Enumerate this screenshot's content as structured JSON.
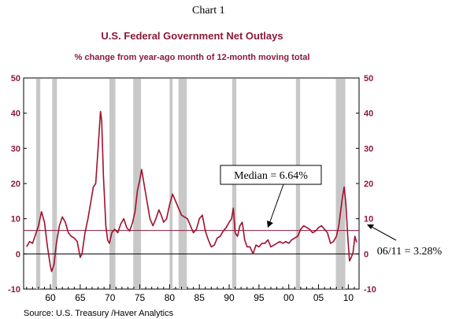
{
  "header": {
    "chart_label": "Chart 1",
    "title": "U.S. Federal Government Net Outlays",
    "subtitle": "% change from year-ago month of 12-month moving total"
  },
  "source": "Source:  U.S. Treasury /Haver Analytics",
  "annotations": {
    "median_label": "Median = 6.64%",
    "last_label": "06/11 = 3.28%"
  },
  "colors": {
    "series": "#a0102e",
    "median_line": "#8b1a3a",
    "recession": "#c8c8c8",
    "axis_text": "#8b1a3a"
  },
  "chart_data": {
    "type": "line",
    "title": "U.S. Federal Government Net Outlays",
    "subtitle": "% change from year-ago month of 12-month moving total",
    "xlabel": "",
    "ylabel": "",
    "xlim": [
      1955.5,
      2011.8
    ],
    "ylim": [
      -10,
      50
    ],
    "y_ticks": [
      -10,
      0,
      10,
      20,
      30,
      40,
      50
    ],
    "x_ticks": [
      {
        "year": 1960,
        "label": "60"
      },
      {
        "year": 1965,
        "label": "65"
      },
      {
        "year": 1970,
        "label": "70"
      },
      {
        "year": 1975,
        "label": "75"
      },
      {
        "year": 1980,
        "label": "80"
      },
      {
        "year": 1985,
        "label": "85"
      },
      {
        "year": 1990,
        "label": "90"
      },
      {
        "year": 1995,
        "label": "95"
      },
      {
        "year": 2000,
        "label": "00"
      },
      {
        "year": 2005,
        "label": "05"
      },
      {
        "year": 2010,
        "label": "10"
      }
    ],
    "median": 6.64,
    "recessions": [
      [
        1957.6,
        1958.3
      ],
      [
        1960.3,
        1961.1
      ],
      [
        1969.9,
        1970.9
      ],
      [
        1973.9,
        1975.2
      ],
      [
        1980.0,
        1980.5
      ],
      [
        1981.5,
        1982.9
      ],
      [
        1990.5,
        1991.2
      ],
      [
        2001.2,
        2001.9
      ],
      [
        2007.9,
        2009.5
      ]
    ],
    "series": [
      {
        "values": [
          [
            1956.0,
            2.0
          ],
          [
            1956.5,
            3.5
          ],
          [
            1957.0,
            3.0
          ],
          [
            1957.5,
            5.5
          ],
          [
            1958.0,
            8.0
          ],
          [
            1958.5,
            12.0
          ],
          [
            1959.0,
            9.0
          ],
          [
            1959.5,
            2.0
          ],
          [
            1960.0,
            -3.5
          ],
          [
            1960.2,
            -5.0
          ],
          [
            1960.6,
            -3.0
          ],
          [
            1961.0,
            3.0
          ],
          [
            1961.5,
            8.0
          ],
          [
            1962.0,
            10.5
          ],
          [
            1962.5,
            9.0
          ],
          [
            1963.0,
            6.0
          ],
          [
            1963.5,
            5.0
          ],
          [
            1964.0,
            4.5
          ],
          [
            1964.5,
            3.5
          ],
          [
            1965.0,
            -1.0
          ],
          [
            1965.3,
            0.0
          ],
          [
            1965.8,
            6.0
          ],
          [
            1966.3,
            10.0
          ],
          [
            1966.8,
            15.0
          ],
          [
            1967.2,
            19.0
          ],
          [
            1967.6,
            20.0
          ],
          [
            1968.0,
            30.0
          ],
          [
            1968.4,
            40.5
          ],
          [
            1968.6,
            38.0
          ],
          [
            1968.9,
            22.0
          ],
          [
            1969.3,
            8.0
          ],
          [
            1969.6,
            4.0
          ],
          [
            1969.9,
            3.0
          ],
          [
            1970.3,
            6.0
          ],
          [
            1970.8,
            7.0
          ],
          [
            1971.3,
            6.0
          ],
          [
            1971.8,
            8.5
          ],
          [
            1972.3,
            10.0
          ],
          [
            1972.8,
            7.5
          ],
          [
            1973.3,
            6.5
          ],
          [
            1973.8,
            9.0
          ],
          [
            1974.2,
            12.0
          ],
          [
            1974.6,
            18.0
          ],
          [
            1975.0,
            21.0
          ],
          [
            1975.3,
            24.0
          ],
          [
            1975.7,
            20.0
          ],
          [
            1976.2,
            15.0
          ],
          [
            1976.7,
            10.0
          ],
          [
            1977.2,
            8.0
          ],
          [
            1977.7,
            10.0
          ],
          [
            1978.2,
            12.5
          ],
          [
            1978.6,
            11.0
          ],
          [
            1979.0,
            9.0
          ],
          [
            1979.5,
            10.0
          ],
          [
            1980.0,
            14.0
          ],
          [
            1980.5,
            17.0
          ],
          [
            1981.0,
            15.0
          ],
          [
            1981.5,
            13.0
          ],
          [
            1982.0,
            11.0
          ],
          [
            1982.5,
            10.5
          ],
          [
            1983.0,
            10.0
          ],
          [
            1983.5,
            8.0
          ],
          [
            1984.0,
            6.0
          ],
          [
            1984.5,
            7.0
          ],
          [
            1985.0,
            10.0
          ],
          [
            1985.5,
            11.0
          ],
          [
            1986.0,
            6.5
          ],
          [
            1986.5,
            4.0
          ],
          [
            1987.0,
            2.0
          ],
          [
            1987.5,
            2.5
          ],
          [
            1988.0,
            4.5
          ],
          [
            1988.5,
            5.0
          ],
          [
            1989.0,
            6.5
          ],
          [
            1989.5,
            7.5
          ],
          [
            1990.0,
            9.0
          ],
          [
            1990.4,
            10.0
          ],
          [
            1990.7,
            13.0
          ],
          [
            1991.0,
            6.0
          ],
          [
            1991.4,
            5.0
          ],
          [
            1991.8,
            8.0
          ],
          [
            1992.2,
            9.0
          ],
          [
            1992.6,
            4.0
          ],
          [
            1993.0,
            2.0
          ],
          [
            1993.5,
            2.0
          ],
          [
            1994.0,
            0.0
          ],
          [
            1994.5,
            2.5
          ],
          [
            1995.0,
            2.0
          ],
          [
            1995.5,
            3.0
          ],
          [
            1996.0,
            3.0
          ],
          [
            1996.5,
            4.0
          ],
          [
            1997.0,
            2.0
          ],
          [
            1997.5,
            2.5
          ],
          [
            1998.0,
            3.0
          ],
          [
            1998.5,
            3.5
          ],
          [
            1999.0,
            3.0
          ],
          [
            1999.5,
            3.5
          ],
          [
            2000.0,
            3.0
          ],
          [
            2000.5,
            4.0
          ],
          [
            2001.0,
            4.5
          ],
          [
            2001.5,
            5.0
          ],
          [
            2002.0,
            7.0
          ],
          [
            2002.5,
            8.0
          ],
          [
            2003.0,
            7.5
          ],
          [
            2003.5,
            7.0
          ],
          [
            2004.0,
            6.0
          ],
          [
            2004.5,
            6.5
          ],
          [
            2005.0,
            7.5
          ],
          [
            2005.5,
            8.0
          ],
          [
            2006.0,
            7.0
          ],
          [
            2006.5,
            6.0
          ],
          [
            2007.0,
            3.0
          ],
          [
            2007.5,
            3.5
          ],
          [
            2008.0,
            5.0
          ],
          [
            2008.4,
            8.0
          ],
          [
            2008.7,
            12.0
          ],
          [
            2009.0,
            16.0
          ],
          [
            2009.3,
            19.0
          ],
          [
            2009.6,
            14.0
          ],
          [
            2009.9,
            5.0
          ],
          [
            2010.2,
            -2.0
          ],
          [
            2010.5,
            -1.0
          ],
          [
            2010.8,
            0.5
          ],
          [
            2011.1,
            5.0
          ],
          [
            2011.4,
            3.28
          ]
        ]
      }
    ]
  }
}
